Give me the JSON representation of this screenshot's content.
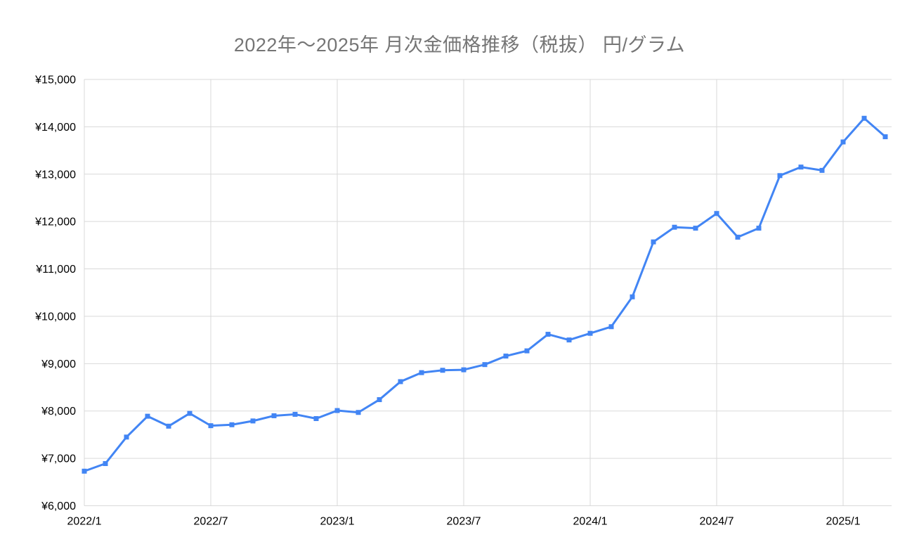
{
  "chart_data": {
    "type": "line",
    "title": "2022年～2025年 月次金価格推移（税抜） 円/グラム",
    "xlabel": "",
    "ylabel": "",
    "ylim": [
      6000,
      15000
    ],
    "grid": true,
    "legend": "none",
    "marker": "square",
    "colors": {
      "line": "#4285F4",
      "marker": "#4285F4",
      "title": "#757575",
      "axis_labels": "#000000",
      "gridlines": "#d9d9d9"
    },
    "x": [
      "2022/1",
      "2022/2",
      "2022/3",
      "2022/4",
      "2022/5",
      "2022/6",
      "2022/7",
      "2022/8",
      "2022/9",
      "2022/10",
      "2022/11",
      "2022/12",
      "2023/1",
      "2023/2",
      "2023/3",
      "2023/4",
      "2023/5",
      "2023/6",
      "2023/7",
      "2023/8",
      "2023/9",
      "2023/10",
      "2023/11",
      "2023/12",
      "2024/1",
      "2024/2",
      "2024/3",
      "2024/4",
      "2024/5",
      "2024/6",
      "2024/7",
      "2024/8",
      "2024/9",
      "2024/10",
      "2024/11",
      "2024/12",
      "2025/1",
      "2025/2",
      "2025/3"
    ],
    "values": [
      6730,
      6890,
      7450,
      7890,
      7680,
      7950,
      7690,
      7710,
      7790,
      7900,
      7930,
      7840,
      8010,
      7970,
      8240,
      8620,
      8810,
      8860,
      8870,
      8980,
      9160,
      9270,
      9620,
      9500,
      9640,
      9780,
      10410,
      11570,
      11880,
      11860,
      12170,
      11670,
      11860,
      12970,
      13150,
      13080,
      13680,
      14180,
      13790
    ],
    "y_ticks": [
      {
        "value": 6000,
        "label": "¥6,000"
      },
      {
        "value": 7000,
        "label": "¥7,000"
      },
      {
        "value": 8000,
        "label": "¥8,000"
      },
      {
        "value": 9000,
        "label": "¥9,000"
      },
      {
        "value": 10000,
        "label": "¥10,000"
      },
      {
        "value": 11000,
        "label": "¥11,000"
      },
      {
        "value": 12000,
        "label": "¥12,000"
      },
      {
        "value": 13000,
        "label": "¥13,000"
      },
      {
        "value": 14000,
        "label": "¥14,000"
      },
      {
        "value": 15000,
        "label": "¥15,000"
      }
    ],
    "x_ticks": [
      {
        "month_index": 0,
        "label": "2022/1"
      },
      {
        "month_index": 6,
        "label": "2022/7"
      },
      {
        "month_index": 12,
        "label": "2023/1"
      },
      {
        "month_index": 18,
        "label": "2023/7"
      },
      {
        "month_index": 24,
        "label": "2024/1"
      },
      {
        "month_index": 30,
        "label": "2024/7"
      },
      {
        "month_index": 36,
        "label": "2025/1"
      }
    ]
  }
}
